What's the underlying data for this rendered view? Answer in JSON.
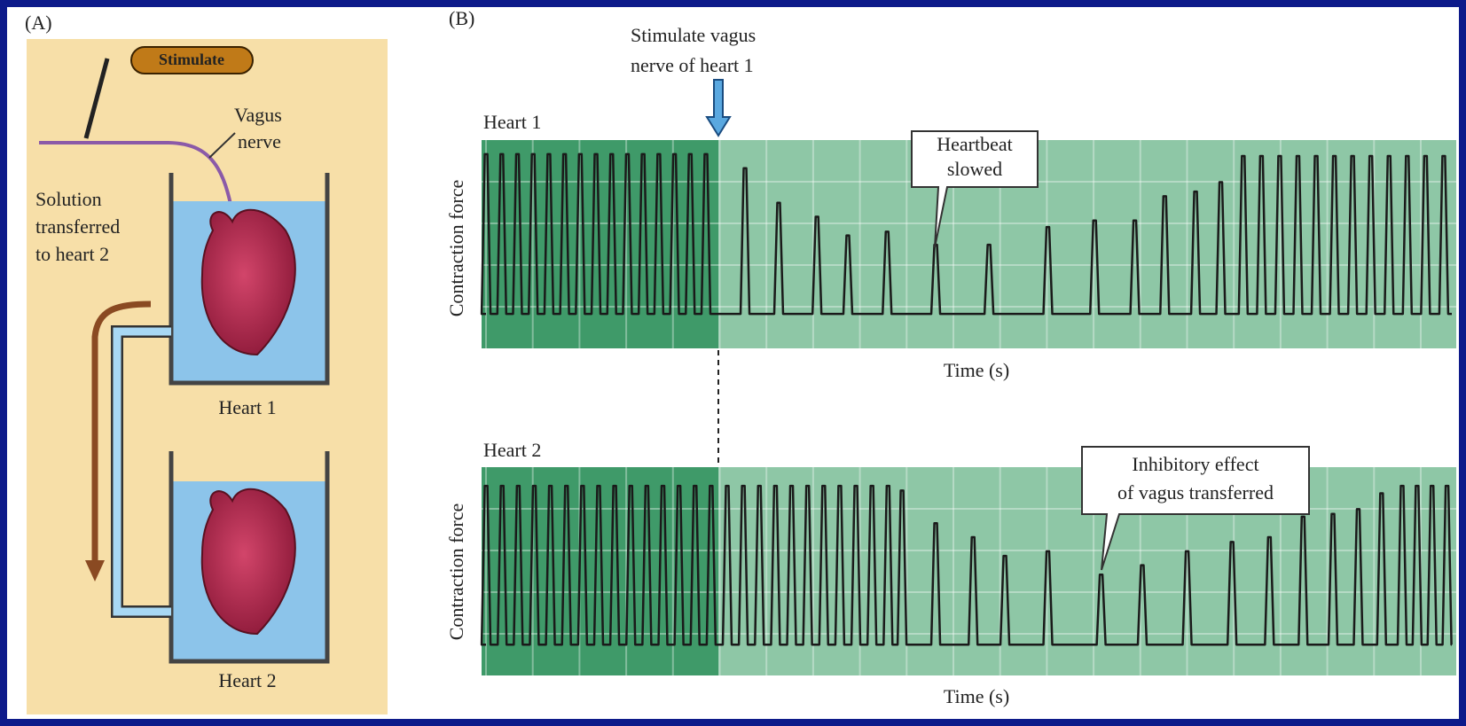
{
  "panel_a": {
    "label": "(A)",
    "stimulate": "Stimulate",
    "vagus_label": [
      "Vagus",
      "nerve"
    ],
    "solution_label": [
      "Solution",
      "transferred",
      "to heart 2"
    ],
    "heart1": "Heart 1",
    "heart2": "Heart 2"
  },
  "panel_b": {
    "label": "(B)",
    "stimulate_label": [
      "Stimulate vagus",
      "nerve of heart 1"
    ],
    "heart1": {
      "title": "Heart 1",
      "y_label": "Contraction force",
      "x_label": "Time (s)",
      "callout": [
        "Heartbeat",
        "slowed"
      ]
    },
    "heart2": {
      "title": "Heart 2",
      "y_label": "Contraction force",
      "x_label": "Time (s)",
      "callout": [
        "Inhibitory effect",
        "of vagus transferred"
      ]
    }
  }
}
